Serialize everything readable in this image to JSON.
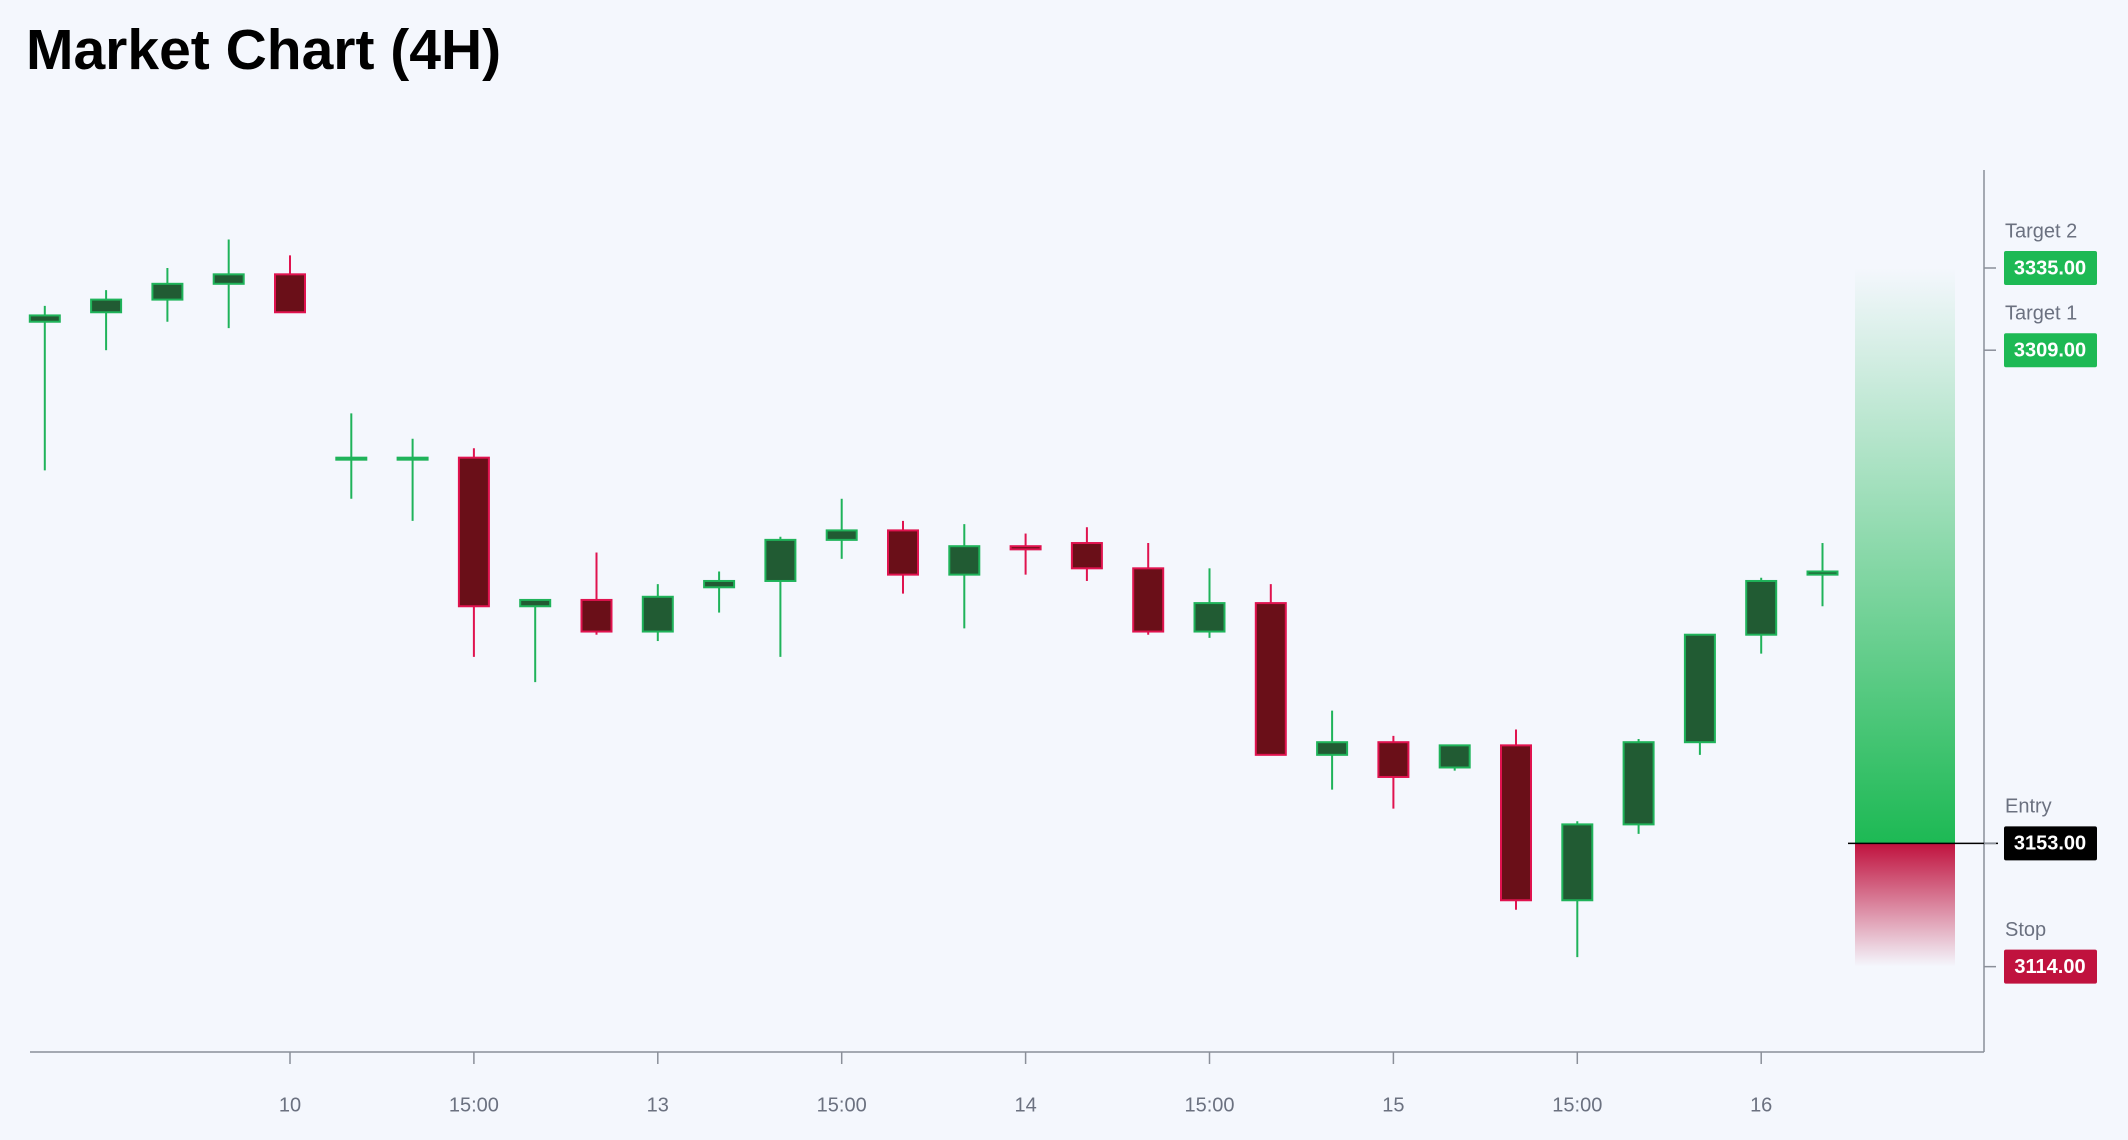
{
  "chart_data": {
    "type": "candlestick",
    "title": "Market Chart (4H)",
    "categories": [
      null,
      null,
      null,
      null,
      "10",
      null,
      null,
      "15:00",
      null,
      null,
      "13",
      null,
      null,
      "15:00",
      null,
      null,
      "14",
      null,
      null,
      "15:00",
      null,
      null,
      "15",
      null,
      null,
      "15:00",
      null,
      null,
      "16",
      null
    ],
    "open": [
      3318,
      3321,
      3325,
      3330,
      3333,
      3275,
      3275,
      3275,
      3228,
      3230,
      3220,
      3234,
      3236,
      3249,
      3252,
      3238,
      3247,
      3248,
      3240,
      3220,
      3229,
      3181,
      3185,
      3177,
      3184,
      3135,
      3159,
      3185,
      3219,
      3238
    ],
    "high": [
      3323,
      3328,
      3335,
      3344,
      3339,
      3289,
      3281,
      3278,
      3230,
      3245,
      3235,
      3239,
      3250,
      3262,
      3255,
      3254,
      3251,
      3253,
      3248,
      3240,
      3235,
      3195,
      3187,
      3184,
      3189,
      3160,
      3186,
      3219,
      3237,
      3248
    ],
    "low": [
      3271,
      3309,
      3318,
      3316,
      3321,
      3262,
      3255,
      3212,
      3204,
      3219,
      3217,
      3226,
      3212,
      3243,
      3232,
      3221,
      3238,
      3236,
      3219,
      3218,
      3181,
      3170,
      3164,
      3176,
      3132,
      3117,
      3156,
      3181,
      3213,
      3228
    ],
    "close": [
      3320,
      3325,
      3330,
      3333,
      3321,
      3275,
      3275,
      3228,
      3230,
      3220,
      3231,
      3236,
      3249,
      3252,
      3238,
      3247,
      3246,
      3240,
      3220,
      3229,
      3181,
      3185,
      3174,
      3184,
      3135,
      3159,
      3185,
      3219,
      3236,
      3239
    ],
    "up_color": "#1fb35a",
    "down_color": "#e0134f",
    "ylim": [
      3087,
      3366
    ],
    "levels": {
      "names": [
        "Target 2",
        "Target 1",
        "Entry",
        "Stop"
      ],
      "values": [
        3335,
        3309,
        3153,
        3114
      ],
      "value_labels": [
        "3335.00",
        "3309.00",
        "3153.00",
        "3114.00"
      ],
      "colors": [
        "#1db954",
        "#1db954",
        "#000000",
        "#c0123e"
      ]
    }
  }
}
